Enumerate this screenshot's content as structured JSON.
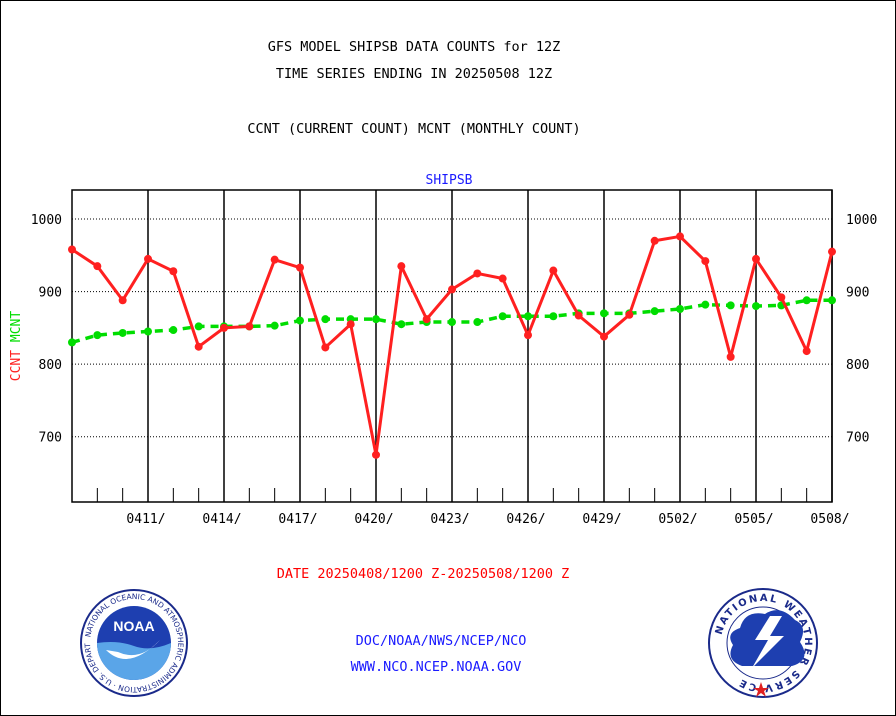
{
  "header": {
    "line1": "GFS MODEL SHIPSB DATA COUNTS for 12Z",
    "line2": "TIME SERIES ENDING IN 20250508 12Z",
    "line3": "CCNT (CURRENT COUNT) MCNT (MONTHLY COUNT)"
  },
  "footer": {
    "date_range": "DATE 20250408/1200 Z-20250508/1200 Z",
    "org": "DOC/NOAA/NWS/NCEP/NCO",
    "url": "WWW.NCO.NCEP.NOAA.GOV"
  },
  "logos": {
    "left": {
      "name": "noaa-logo",
      "text": "NOAA",
      "ring_text": "NATIONAL OCEANIC AND ATMOSPHERIC ADMINISTRATION · U.S. DEPARTMENT OF COMMERCE"
    },
    "right": {
      "name": "nws-logo",
      "ring_text": "NATIONAL WEATHER SERVICE"
    }
  },
  "chart_data": {
    "type": "line",
    "title": "SHIPSB",
    "ylabel_ccnt": "CCNT",
    "ylabel_mcnt": "MCNT",
    "ylim": [
      610,
      1040
    ],
    "xlim": [
      0,
      30
    ],
    "yticks": [
      700,
      800,
      900,
      1000
    ],
    "xticks": [
      {
        "x": 3,
        "label": "0411/"
      },
      {
        "x": 6,
        "label": "0414/"
      },
      {
        "x": 9,
        "label": "0417/"
      },
      {
        "x": 12,
        "label": "0420/"
      },
      {
        "x": 15,
        "label": "0423/"
      },
      {
        "x": 18,
        "label": "0426/"
      },
      {
        "x": 21,
        "label": "0429/"
      },
      {
        "x": 24,
        "label": "0502/"
      },
      {
        "x": 27,
        "label": "0505/"
      },
      {
        "x": 30,
        "label": "0508/"
      }
    ],
    "grid": true,
    "colors": {
      "ccnt": "#ff2020",
      "mcnt": "#00dd00",
      "title": "#1a1aff",
      "date": "#ff2020",
      "footer": "#1a1aff"
    },
    "series": [
      {
        "name": "CCNT",
        "values": [
          958,
          935,
          888,
          945,
          928,
          824,
          850,
          852,
          944,
          933,
          823,
          855,
          675,
          935,
          862,
          903,
          925,
          918,
          840,
          929,
          867,
          838,
          868,
          970,
          976,
          942,
          810,
          945,
          892,
          818,
          955
        ]
      },
      {
        "name": "MCNT",
        "values": [
          830,
          840,
          843,
          845,
          847,
          852,
          852,
          852,
          853,
          860,
          862,
          862,
          862,
          855,
          858,
          858,
          858,
          866,
          866,
          866,
          870,
          870,
          870,
          873,
          876,
          882,
          881,
          880,
          881,
          888,
          888
        ]
      }
    ]
  }
}
